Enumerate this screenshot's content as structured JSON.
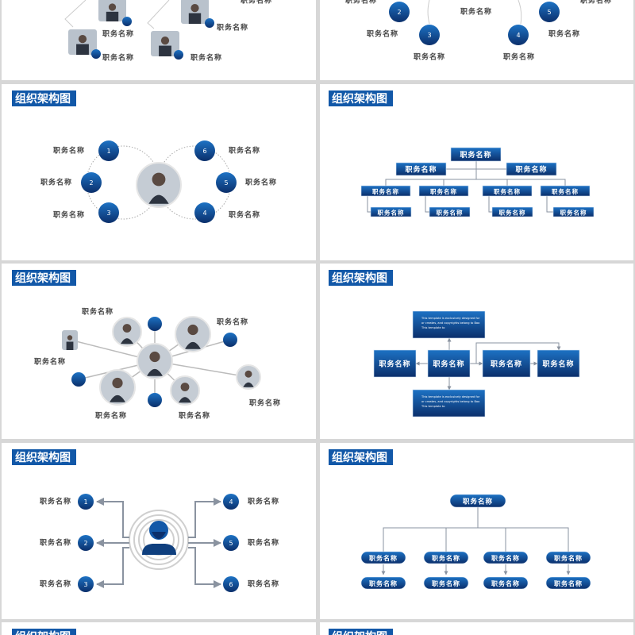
{
  "slide_title": "组织架构图",
  "job_title": "职务名称",
  "numbers": [
    "1",
    "2",
    "3",
    "4",
    "5",
    "6"
  ],
  "template_note": [
    "This template is exclusively designed for",
    "or creates, and copyrights belong to Bao",
    "This template to"
  ],
  "colors": {
    "background": "#d7d7d7",
    "slide": "#ffffff",
    "accent_light": "#1d72c4",
    "accent_dark": "#0b2f6b",
    "title_bg": "#1258a8",
    "line": "#8a93a0"
  }
}
